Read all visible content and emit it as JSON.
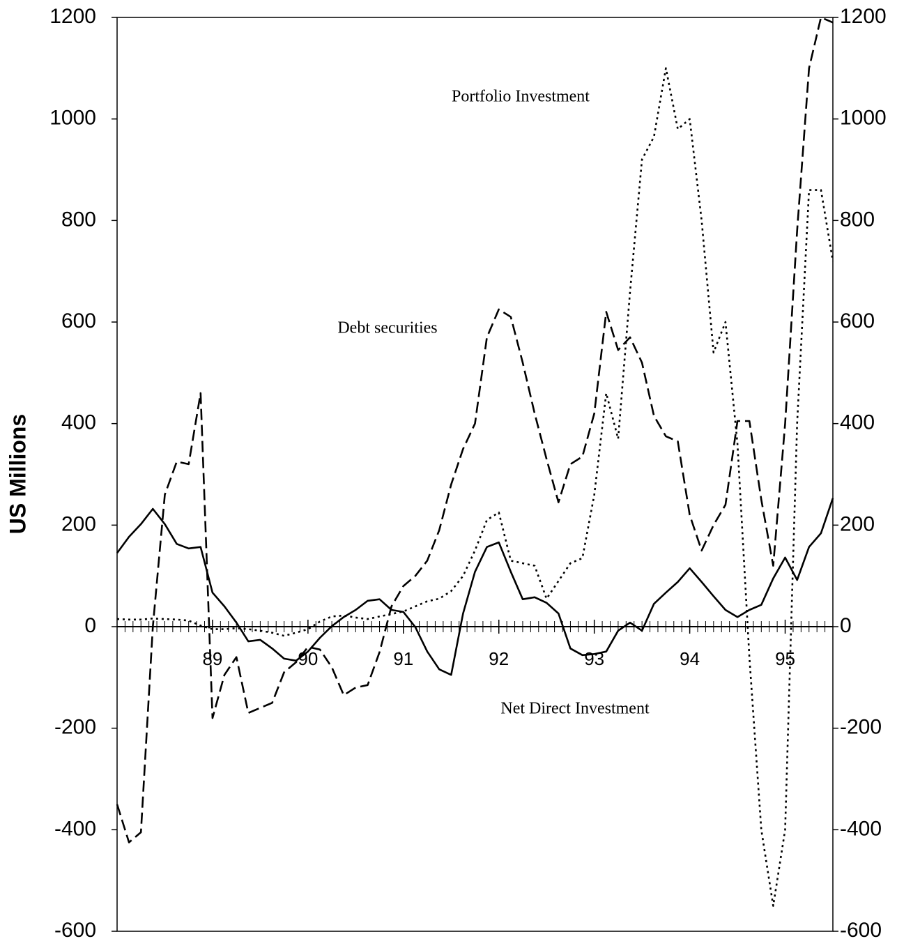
{
  "chart_data": {
    "type": "line",
    "y_axis_label": "US Millions",
    "x": [
      88,
      88.125,
      88.25,
      88.375,
      88.5,
      88.625,
      88.75,
      88.875,
      89,
      89.125,
      89.25,
      89.375,
      89.5,
      89.625,
      89.75,
      89.875,
      90,
      90.125,
      90.25,
      90.375,
      90.5,
      90.625,
      90.75,
      90.875,
      91,
      91.125,
      91.25,
      91.375,
      91.5,
      91.625,
      91.75,
      91.875,
      92,
      92.125,
      92.25,
      92.375,
      92.5,
      92.625,
      92.75,
      92.875,
      93,
      93.125,
      93.25,
      93.375,
      93.5,
      93.625,
      93.75,
      93.875,
      94,
      94.125,
      94.25,
      94.375,
      94.5,
      94.625,
      94.75,
      94.875,
      95,
      95.125,
      95.25,
      95.375,
      95.5
    ],
    "series": [
      {
        "name": "Net Direct Investment",
        "color": "#000000",
        "dash": "solid",
        "values": [
          145,
          177,
          202,
          232,
          202,
          163,
          154,
          157,
          67,
          40,
          8,
          -29,
          -26,
          -43,
          -63,
          -67,
          -49,
          -22,
          1,
          19,
          33,
          51,
          54,
          33,
          29,
          -1,
          -49,
          -84,
          -95,
          26,
          108,
          157,
          166,
          108,
          54,
          58,
          47,
          26,
          -43,
          -56,
          -54,
          -49,
          -8,
          8,
          -8,
          45,
          67,
          88,
          115,
          88,
          60,
          33,
          19,
          33,
          43,
          95,
          136,
          92,
          157,
          184,
          253
        ]
      },
      {
        "name": "Debt securities",
        "color": "#000000",
        "dash": "dashed",
        "values": [
          -350,
          -425,
          -405,
          0,
          260,
          325,
          320,
          460,
          -180,
          -95,
          -60,
          -170,
          -160,
          -150,
          -90,
          -70,
          -40,
          -45,
          -80,
          -135,
          -120,
          -115,
          -50,
          40,
          80,
          100,
          130,
          190,
          280,
          350,
          400,
          570,
          625,
          610,
          520,
          420,
          330,
          245,
          320,
          335,
          420,
          620,
          545,
          570,
          520,
          415,
          375,
          365,
          220,
          150,
          200,
          240,
          405,
          405,
          250,
          120,
          400,
          780,
          1100,
          1200,
          1190
        ]
      },
      {
        "name": "Portfolio Investment",
        "color": "#000000",
        "dash": "dotted",
        "values": [
          15,
          14,
          14,
          16,
          15,
          14,
          12,
          2,
          -5,
          -5,
          -3,
          -5,
          -8,
          -12,
          -18,
          -12,
          -5,
          10,
          20,
          22,
          18,
          15,
          20,
          25,
          30,
          40,
          50,
          55,
          70,
          100,
          150,
          210,
          225,
          130,
          125,
          120,
          55,
          90,
          125,
          135,
          260,
          460,
          370,
          660,
          920,
          965,
          1100,
          980,
          1000,
          800,
          540,
          600,
          360,
          -60,
          -400,
          -550,
          -400,
          400,
          860,
          860,
          720
        ]
      }
    ],
    "xlim": [
      88,
      95.5
    ],
    "xticks": [
      89,
      90,
      91,
      92,
      93,
      94,
      95
    ],
    "ylim": [
      -600,
      1200
    ],
    "yticks": [
      -600,
      -400,
      -200,
      0,
      200,
      400,
      600,
      800,
      1000,
      1200
    ],
    "y2lim": [
      -600,
      1200
    ],
    "y2ticks": [
      -600,
      -400,
      -200,
      0,
      200,
      400,
      600,
      800,
      1000,
      1200
    ],
    "grid": false
  }
}
